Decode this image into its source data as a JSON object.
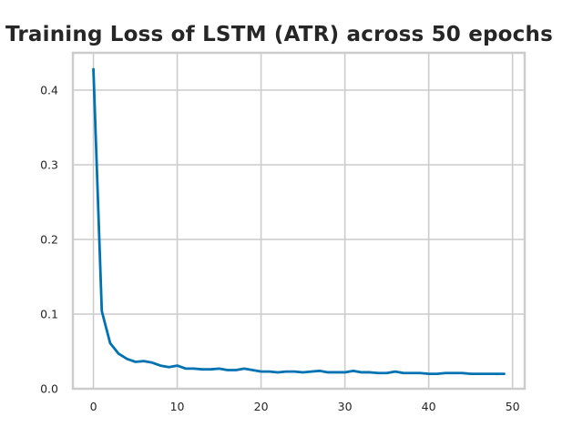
{
  "chart_data": {
    "type": "line",
    "title": "Training Loss of LSTM (ATR) across 50 epochs",
    "xlabel": "",
    "ylabel": "",
    "xlim": [
      -2.45,
      51.45
    ],
    "ylim": [
      0,
      0.45
    ],
    "grid": true,
    "xticks": [
      0,
      10,
      20,
      30,
      40,
      50
    ],
    "yticks": [
      0.0,
      0.1,
      0.2,
      0.3,
      0.4
    ],
    "xtick_labels": [
      "0",
      "10",
      "20",
      "30",
      "40",
      "50"
    ],
    "ytick_labels": [
      "0.0",
      "0.1",
      "0.2",
      "0.3",
      "0.4"
    ],
    "series": [
      {
        "color": "#0072b2",
        "x": [
          0,
          1,
          2,
          3,
          4,
          5,
          6,
          7,
          8,
          9,
          10,
          11,
          12,
          13,
          14,
          15,
          16,
          17,
          18,
          19,
          20,
          21,
          22,
          23,
          24,
          25,
          26,
          27,
          28,
          29,
          30,
          31,
          32,
          33,
          34,
          35,
          36,
          37,
          38,
          39,
          40,
          41,
          42,
          43,
          44,
          45,
          46,
          47,
          48,
          49
        ],
        "y": [
          0.428,
          0.104,
          0.061,
          0.047,
          0.04,
          0.036,
          0.037,
          0.035,
          0.031,
          0.029,
          0.031,
          0.027,
          0.027,
          0.026,
          0.026,
          0.027,
          0.025,
          0.025,
          0.027,
          0.025,
          0.023,
          0.023,
          0.022,
          0.023,
          0.023,
          0.022,
          0.023,
          0.024,
          0.022,
          0.022,
          0.022,
          0.024,
          0.022,
          0.022,
          0.021,
          0.021,
          0.023,
          0.021,
          0.021,
          0.021,
          0.02,
          0.02,
          0.021,
          0.021,
          0.021,
          0.02,
          0.02,
          0.02,
          0.02,
          0.02
        ]
      }
    ]
  }
}
